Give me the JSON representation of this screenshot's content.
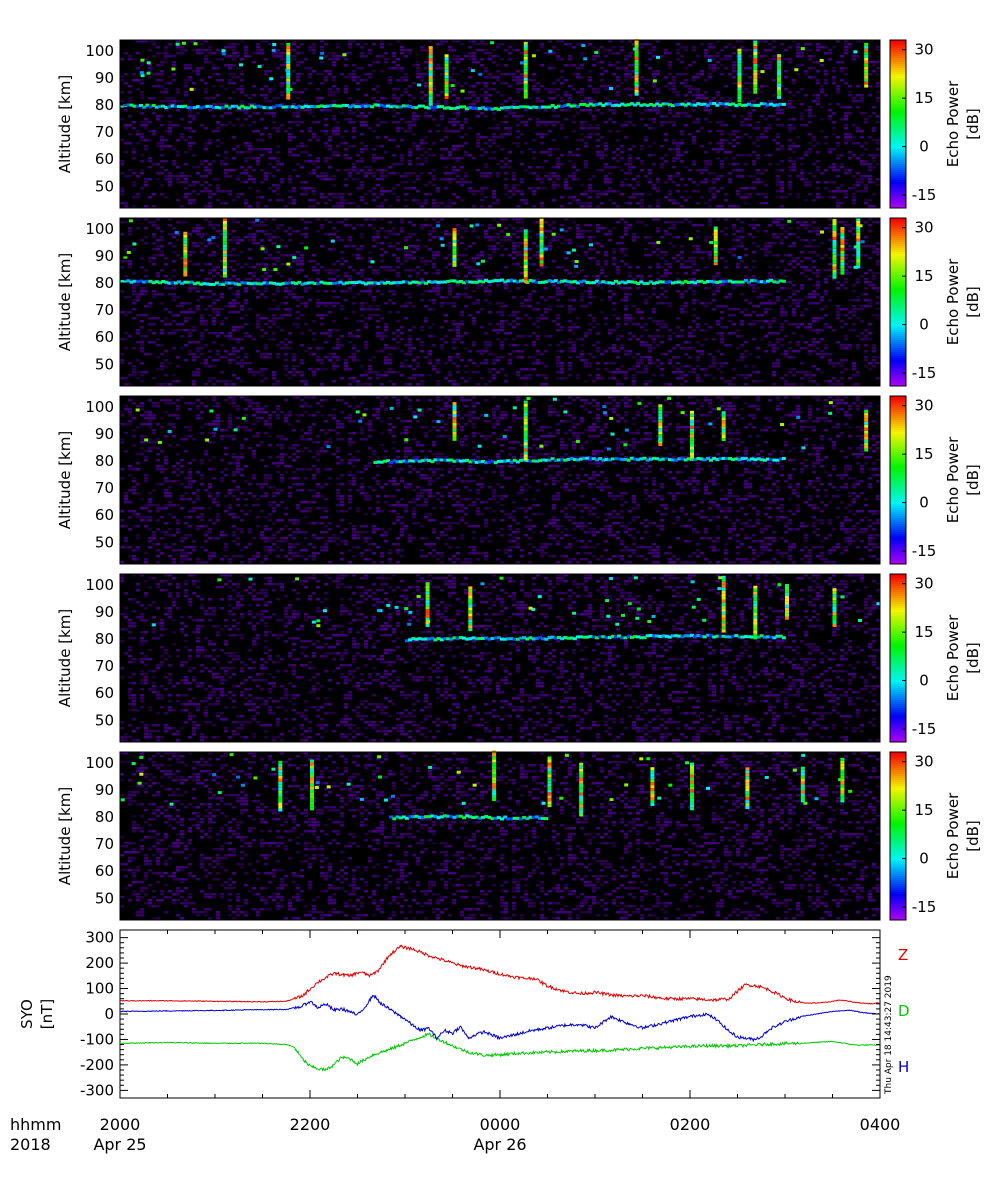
{
  "chart_data": [
    {
      "type": "heatmap",
      "panel": 1,
      "ylabel": "Altitude [km]",
      "yticks": [
        50,
        60,
        70,
        80,
        90,
        100
      ],
      "ylim": [
        42,
        104
      ],
      "xlim_minutes_after_2000": [
        0,
        480
      ],
      "colorbar": {
        "label": "Echo Power [dB]",
        "ticks": [
          -15,
          0,
          15,
          30
        ],
        "range": [
          -19,
          33
        ]
      },
      "echo_layer": [
        {
          "minutes": 0,
          "alt_km": 79.5
        },
        {
          "minutes": 60,
          "alt_km": 79.0
        },
        {
          "minutes": 160,
          "alt_km": 79.5
        },
        {
          "minutes": 240,
          "alt_km": 78.5
        },
        {
          "minutes": 300,
          "alt_km": 80.0
        },
        {
          "minutes": 420,
          "alt_km": 80.0
        }
      ],
      "strong_echo_columns_minutes": [
        105,
        195,
        205,
        255,
        325,
        390,
        400,
        415,
        470
      ]
    },
    {
      "type": "heatmap",
      "panel": 2,
      "ylabel": "Altitude [km]",
      "yticks": [
        50,
        60,
        70,
        80,
        90,
        100
      ],
      "ylim": [
        42,
        104
      ],
      "xlim_minutes_after_2000": [
        0,
        480
      ],
      "colorbar": {
        "label": "Echo Power [dB]",
        "ticks": [
          -15,
          0,
          15,
          30
        ],
        "range": [
          -19,
          33
        ]
      },
      "echo_layer": [
        {
          "minutes": 0,
          "alt_km": 80.5
        },
        {
          "minutes": 60,
          "alt_km": 79.5
        },
        {
          "minutes": 180,
          "alt_km": 80.0
        },
        {
          "minutes": 240,
          "alt_km": 80.5
        },
        {
          "minutes": 330,
          "alt_km": 80.0
        },
        {
          "minutes": 420,
          "alt_km": 80.5
        }
      ],
      "strong_echo_columns_minutes": [
        40,
        65,
        210,
        255,
        265,
        375,
        450,
        455,
        465
      ]
    },
    {
      "type": "heatmap",
      "panel": 3,
      "ylabel": "Altitude [km]",
      "yticks": [
        50,
        60,
        70,
        80,
        90,
        100
      ],
      "ylim": [
        42,
        104
      ],
      "xlim_minutes_after_2000": [
        0,
        480
      ],
      "colorbar": {
        "label": "Echo Power [dB]",
        "ticks": [
          -15,
          0,
          15,
          30
        ],
        "range": [
          -19,
          33
        ]
      },
      "echo_layer": [
        {
          "minutes": 160,
          "alt_km": 79.5
        },
        {
          "minutes": 200,
          "alt_km": 80.0
        },
        {
          "minutes": 240,
          "alt_km": 79.5
        },
        {
          "minutes": 280,
          "alt_km": 80.5
        },
        {
          "minutes": 420,
          "alt_km": 80.5
        }
      ],
      "strong_echo_columns_minutes": [
        210,
        255,
        340,
        360,
        380,
        470
      ]
    },
    {
      "type": "heatmap",
      "panel": 4,
      "ylabel": "Altitude [km]",
      "yticks": [
        50,
        60,
        70,
        80,
        90,
        100
      ],
      "ylim": [
        42,
        104
      ],
      "xlim_minutes_after_2000": [
        0,
        480
      ],
      "colorbar": {
        "label": "Echo Power [dB]",
        "ticks": [
          -15,
          0,
          15,
          30
        ],
        "range": [
          -19,
          33
        ]
      },
      "echo_layer": [
        {
          "minutes": 180,
          "alt_km": 79.5
        },
        {
          "minutes": 210,
          "alt_km": 80.0
        },
        {
          "minutes": 260,
          "alt_km": 80.0
        },
        {
          "minutes": 300,
          "alt_km": 80.5
        },
        {
          "minutes": 370,
          "alt_km": 81.0
        },
        {
          "minutes": 420,
          "alt_km": 80.5
        }
      ],
      "strong_echo_columns_minutes": [
        193,
        220,
        380,
        400,
        420,
        450
      ]
    },
    {
      "type": "heatmap",
      "panel": 5,
      "ylabel": "Altitude [km]",
      "yticks": [
        50,
        60,
        70,
        80,
        90,
        100
      ],
      "ylim": [
        42,
        104
      ],
      "xlim_minutes_after_2000": [
        0,
        480
      ],
      "colorbar": {
        "label": "Echo Power [dB]",
        "ticks": [
          -15,
          0,
          15,
          30
        ],
        "range": [
          -19,
          33
        ]
      },
      "echo_layer": [
        {
          "minutes": 170,
          "alt_km": 79.5
        },
        {
          "minutes": 210,
          "alt_km": 80.0
        },
        {
          "minutes": 240,
          "alt_km": 79.5
        },
        {
          "minutes": 270,
          "alt_km": 79.5
        }
      ],
      "strong_echo_columns_minutes": [
        100,
        120,
        235,
        270,
        290,
        335,
        360,
        395,
        430,
        455
      ]
    },
    {
      "type": "line",
      "panel": 6,
      "ylabel": "SYO [nT]",
      "yticks": [
        -300,
        -200,
        -100,
        0,
        100,
        200,
        300
      ],
      "ylim": [
        -330,
        330
      ],
      "xlim_minutes_after_2000": [
        0,
        480
      ],
      "series": [
        {
          "name": "Z",
          "color": "#e00000",
          "points": [
            [
              0,
              52
            ],
            [
              30,
              52
            ],
            [
              60,
              50
            ],
            [
              90,
              48
            ],
            [
              105,
              50
            ],
            [
              115,
              70
            ],
            [
              125,
              125
            ],
            [
              135,
              160
            ],
            [
              145,
              150
            ],
            [
              152,
              165
            ],
            [
              158,
              150
            ],
            [
              163,
              170
            ],
            [
              170,
              230
            ],
            [
              177,
              265
            ],
            [
              185,
              255
            ],
            [
              195,
              230
            ],
            [
              205,
              210
            ],
            [
              215,
              190
            ],
            [
              225,
              180
            ],
            [
              235,
              165
            ],
            [
              245,
              150
            ],
            [
              255,
              140
            ],
            [
              262,
              140
            ],
            [
              270,
              110
            ],
            [
              280,
              90
            ],
            [
              290,
              80
            ],
            [
              300,
              85
            ],
            [
              310,
              75
            ],
            [
              320,
              70
            ],
            [
              330,
              72
            ],
            [
              345,
              60
            ],
            [
              360,
              60
            ],
            [
              375,
              55
            ],
            [
              385,
              60
            ],
            [
              390,
              90
            ],
            [
              395,
              115
            ],
            [
              403,
              110
            ],
            [
              410,
              95
            ],
            [
              418,
              70
            ],
            [
              425,
              50
            ],
            [
              435,
              42
            ],
            [
              445,
              45
            ],
            [
              455,
              55
            ],
            [
              465,
              45
            ],
            [
              475,
              40
            ],
            [
              480,
              45
            ]
          ]
        },
        {
          "name": "D",
          "color": "#00c800",
          "points": [
            [
              0,
              -115
            ],
            [
              30,
              -112
            ],
            [
              60,
              -115
            ],
            [
              90,
              -115
            ],
            [
              105,
              -120
            ],
            [
              110,
              -130
            ],
            [
              115,
              -175
            ],
            [
              120,
              -205
            ],
            [
              125,
              -215
            ],
            [
              130,
              -220
            ],
            [
              135,
              -200
            ],
            [
              140,
              -170
            ],
            [
              145,
              -175
            ],
            [
              150,
              -195
            ],
            [
              160,
              -160
            ],
            [
              170,
              -140
            ],
            [
              180,
              -115
            ],
            [
              190,
              -90
            ],
            [
              195,
              -80
            ],
            [
              200,
              -95
            ],
            [
              210,
              -125
            ],
            [
              220,
              -150
            ],
            [
              230,
              -162
            ],
            [
              240,
              -160
            ],
            [
              250,
              -155
            ],
            [
              270,
              -150
            ],
            [
              290,
              -145
            ],
            [
              310,
              -142
            ],
            [
              330,
              -135
            ],
            [
              350,
              -130
            ],
            [
              370,
              -125
            ],
            [
              390,
              -125
            ],
            [
              410,
              -118
            ],
            [
              430,
              -115
            ],
            [
              450,
              -108
            ],
            [
              465,
              -122
            ],
            [
              480,
              -122
            ]
          ]
        },
        {
          "name": "H",
          "color": "#0000c8",
          "points": [
            [
              0,
              10
            ],
            [
              30,
              12
            ],
            [
              60,
              14
            ],
            [
              90,
              17
            ],
            [
              105,
              18
            ],
            [
              115,
              30
            ],
            [
              120,
              50
            ],
            [
              125,
              25
            ],
            [
              130,
              40
            ],
            [
              135,
              15
            ],
            [
              140,
              20
            ],
            [
              145,
              10
            ],
            [
              150,
              -5
            ],
            [
              155,
              30
            ],
            [
              160,
              75
            ],
            [
              165,
              40
            ],
            [
              170,
              20
            ],
            [
              175,
              0
            ],
            [
              180,
              -20
            ],
            [
              185,
              -45
            ],
            [
              190,
              -65
            ],
            [
              195,
              -55
            ],
            [
              200,
              -95
            ],
            [
              205,
              -65
            ],
            [
              210,
              -75
            ],
            [
              215,
              -50
            ],
            [
              220,
              -95
            ],
            [
              225,
              -80
            ],
            [
              230,
              -70
            ],
            [
              240,
              -95
            ],
            [
              250,
              -80
            ],
            [
              260,
              -65
            ],
            [
              270,
              -55
            ],
            [
              280,
              -45
            ],
            [
              290,
              -40
            ],
            [
              300,
              -55
            ],
            [
              310,
              -10
            ],
            [
              320,
              -35
            ],
            [
              330,
              -55
            ],
            [
              340,
              -40
            ],
            [
              350,
              -25
            ],
            [
              360,
              -10
            ],
            [
              370,
              0
            ],
            [
              375,
              -15
            ],
            [
              380,
              -40
            ],
            [
              385,
              -70
            ],
            [
              390,
              -90
            ],
            [
              395,
              -95
            ],
            [
              400,
              -100
            ],
            [
              405,
              -90
            ],
            [
              410,
              -60
            ],
            [
              420,
              -30
            ],
            [
              430,
              -10
            ],
            [
              440,
              0
            ],
            [
              450,
              10
            ],
            [
              460,
              15
            ],
            [
              470,
              5
            ],
            [
              480,
              0
            ]
          ]
        }
      ]
    }
  ],
  "panels": {
    "altitude_label": "Altitude [km]",
    "colorbar_label_line1": "Echo Power",
    "colorbar_label_line2": "[dB]",
    "mag_label_line1": "SYO",
    "mag_label_line2": "[nT]",
    "legend_z": "Z",
    "legend_d": "D",
    "legend_h": "H",
    "timestamp": "Thu Apr 18 14:43:27 2019"
  },
  "time_axis": {
    "row_label_1": "hhmm",
    "row_label_2": "2018",
    "ticks": [
      {
        "hhmm": "2000",
        "date": "Apr 25"
      },
      {
        "hhmm": "2200",
        "date": ""
      },
      {
        "hhmm": "0000",
        "date": "Apr 26"
      },
      {
        "hhmm": "0200",
        "date": ""
      },
      {
        "hhmm": "0400",
        "date": ""
      }
    ]
  },
  "colors": {
    "background": "#ffffff",
    "plot_background": "#000000",
    "z_color": "#e00000",
    "d_color": "#00c800",
    "h_color": "#0000c8"
  }
}
